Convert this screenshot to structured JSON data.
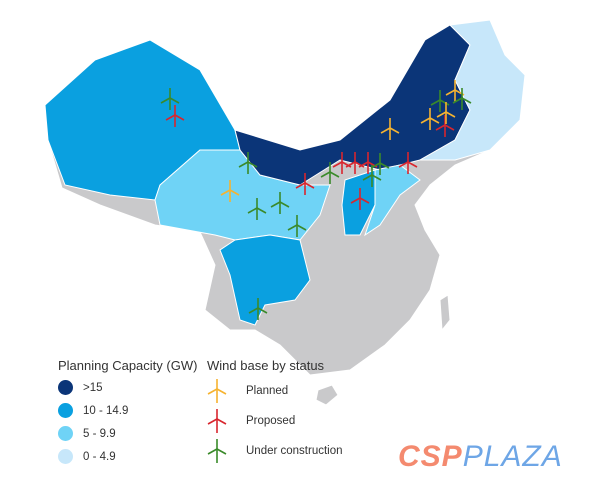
{
  "colors": {
    "gt15": "#0b3578",
    "c10_14": "#0aa0e0",
    "c5_9": "#6fd3f6",
    "c0_4": "#c7e7fa",
    "other": "#c9c9cb",
    "planned": "#f6b330",
    "proposed": "#d8262e",
    "under_construction": "#3a8a2a"
  },
  "legend_capacity": {
    "title": "Planning Capacity (GW)",
    "items": [
      {
        "label": ">15",
        "color": "#0b3578"
      },
      {
        "label": "10 - 14.9",
        "color": "#0aa0e0"
      },
      {
        "label": "5 - 9.9",
        "color": "#6fd3f6"
      },
      {
        "label": "0 - 4.9",
        "color": "#c7e7fa"
      }
    ]
  },
  "legend_status": {
    "title": "Wind base by status",
    "items": [
      {
        "label": "Planned",
        "icon": "wind-turbine-icon",
        "color": "#f6b330"
      },
      {
        "label": "Proposed",
        "icon": "wind-turbine-icon",
        "color": "#d8262e"
      },
      {
        "label": "Under construction",
        "icon": "wind-turbine-icon",
        "color": "#3a8a2a"
      }
    ]
  },
  "logo": {
    "part1": "CSP",
    "part2": "PLAZA"
  }
}
